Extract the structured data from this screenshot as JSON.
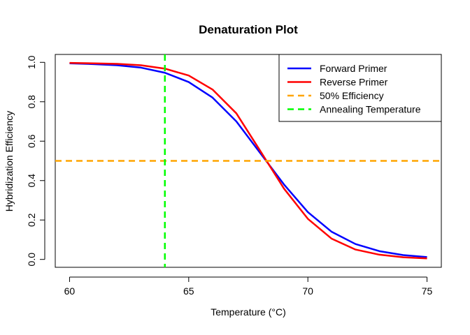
{
  "chart_data": {
    "type": "line",
    "title": "Denaturation Plot",
    "xlabel": "Temperature (°C)",
    "ylabel": "Hybridization Efficiency",
    "xlim": [
      59.4,
      75.6
    ],
    "ylim": [
      -0.04,
      1.04
    ],
    "xticks": [
      60,
      65,
      70,
      75
    ],
    "xtick_labels": [
      "60",
      "65",
      "70",
      "75"
    ],
    "yticks": [
      0.0,
      0.2,
      0.4,
      0.6,
      0.8,
      1.0
    ],
    "ytick_labels": [
      "0.0",
      "0.2",
      "0.4",
      "0.6",
      "0.8",
      "1.0"
    ],
    "x": [
      60,
      61,
      62,
      63,
      64,
      65,
      66,
      67,
      68,
      69,
      70,
      71,
      72,
      73,
      74,
      75
    ],
    "series": [
      {
        "name": "Forward Primer",
        "color": "#0000ff",
        "values": [
          0.995,
          0.991,
          0.985,
          0.973,
          0.947,
          0.9,
          0.821,
          0.7,
          0.54,
          0.38,
          0.24,
          0.14,
          0.078,
          0.042,
          0.022,
          0.012
        ]
      },
      {
        "name": "Reverse Primer",
        "color": "#ff0000",
        "values": [
          0.997,
          0.995,
          0.992,
          0.985,
          0.968,
          0.933,
          0.862,
          0.741,
          0.551,
          0.359,
          0.206,
          0.105,
          0.05,
          0.024,
          0.011,
          0.005
        ]
      }
    ],
    "reference_lines": [
      {
        "name": "50% Efficiency",
        "orientation": "horizontal",
        "value": 0.5,
        "color": "#ffa500",
        "style": "dashed"
      },
      {
        "name": "Annealing Temperature",
        "orientation": "vertical",
        "value": 64,
        "color": "#00ff00",
        "style": "dashed"
      }
    ],
    "legend": {
      "position": "top-right",
      "entries": [
        {
          "label": "Forward Primer",
          "color": "#0000ff",
          "style": "solid"
        },
        {
          "label": "Reverse Primer",
          "color": "#ff0000",
          "style": "solid"
        },
        {
          "label": "50% Efficiency",
          "color": "#ffa500",
          "style": "dashed"
        },
        {
          "label": "Annealing Temperature",
          "color": "#00ff00",
          "style": "dashed"
        }
      ]
    },
    "grid": false
  }
}
